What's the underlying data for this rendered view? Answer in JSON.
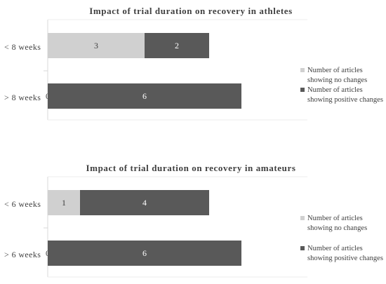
{
  "colors": {
    "no_change": "#d0d0d0",
    "positive": "#595959",
    "axis": "#d9d9d9",
    "text": "#404040",
    "label_on_dark": "#ffffff",
    "label_on_light": "#404040"
  },
  "chart_data": [
    {
      "type": "bar",
      "orientation": "horizontal",
      "stacked": true,
      "title": "Impact of trial duration on recovery in athletes",
      "categories": [
        "< 8 weeks",
        "> 8 weeks"
      ],
      "series": [
        {
          "name": "Number of articles showing no changes",
          "values": [
            3,
            0
          ],
          "color_key": "no_change"
        },
        {
          "name": "Number of articles showing positive changes",
          "values": [
            2,
            6
          ],
          "color_key": "positive"
        }
      ],
      "xlim": [
        0,
        8
      ],
      "grid": false,
      "legend": "right"
    },
    {
      "type": "bar",
      "orientation": "horizontal",
      "stacked": true,
      "title": "Impact of trial duration on recovery in amateurs",
      "categories": [
        "< 6 weeks",
        "> 6 weeks"
      ],
      "series": [
        {
          "name": "Number of articles showing no changes",
          "values": [
            1,
            0
          ],
          "color_key": "no_change"
        },
        {
          "name": "Number of articles showing positive changes",
          "values": [
            4,
            6
          ],
          "color_key": "positive"
        }
      ],
      "xlim": [
        0,
        8
      ],
      "grid": false,
      "legend": "right"
    }
  ]
}
